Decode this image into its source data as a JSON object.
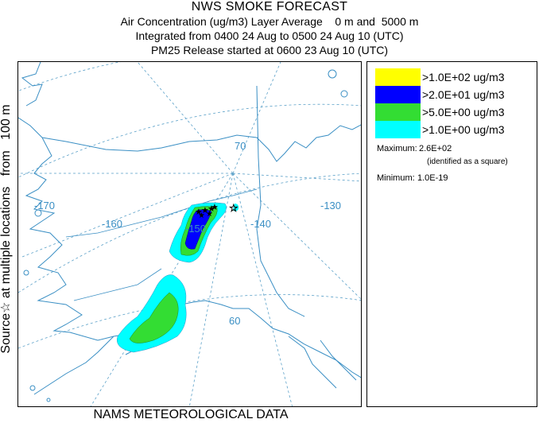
{
  "header": {
    "title": "NWS SMOKE FORECAST",
    "line2": "Air Concentration (ug/m3) Layer Average    0 m and  5000 m",
    "line3": "Integrated from 0400 24 Aug to 0500 24 Aug 10 (UTC)",
    "line4": "PM25 Release started at 0600 23 Aug 10 (UTC)"
  },
  "side_label": "Source☆ at multiple locations   from   100 m",
  "footer": "NAMS METEOROLOGICAL DATA",
  "map": {
    "lon_labels": [
      "-170",
      "-160",
      "-150",
      "-140",
      "-130"
    ],
    "lat_labels": [
      "70",
      "60"
    ],
    "graticule_color": "#5aa0c8",
    "coast_color": "#3a8fc4"
  },
  "legend": {
    "items": [
      {
        "label": ">1.0E+02 ug/m3",
        "color": "#ffff00"
      },
      {
        "label": ">2.0E+01 ug/m3",
        "color": "#0000ff"
      },
      {
        "label": ">5.0E+00 ug/m3",
        "color": "#33dd33"
      },
      {
        "label": ">1.0E+00 ug/m3",
        "color": "#00ffff"
      }
    ],
    "maximum_label": "Maximum:",
    "maximum_value": "2.6E+02",
    "maximum_note": "(identified as a square)",
    "minimum_label": "Minimum:",
    "minimum_value": "1.0E-19"
  }
}
